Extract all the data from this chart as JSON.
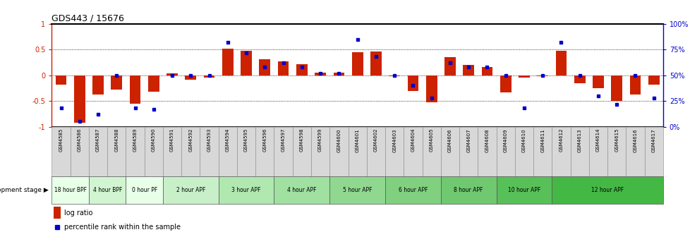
{
  "title": "GDS443 / 15676",
  "samples": [
    "GSM4585",
    "GSM4586",
    "GSM4587",
    "GSM4588",
    "GSM4589",
    "GSM4590",
    "GSM4591",
    "GSM4592",
    "GSM4593",
    "GSM4594",
    "GSM4595",
    "GSM4596",
    "GSM4597",
    "GSM4598",
    "GSM4599",
    "GSM4600",
    "GSM4601",
    "GSM4602",
    "GSM4603",
    "GSM4604",
    "GSM4605",
    "GSM4606",
    "GSM4607",
    "GSM4608",
    "GSM4609",
    "GSM4610",
    "GSM4611",
    "GSM4612",
    "GSM4613",
    "GSM4614",
    "GSM4615",
    "GSM4616",
    "GSM4617"
  ],
  "log_ratio": [
    -0.18,
    -0.92,
    -0.38,
    -0.28,
    -0.55,
    -0.32,
    0.04,
    -0.08,
    -0.04,
    0.52,
    0.48,
    0.31,
    0.27,
    0.22,
    0.05,
    0.05,
    0.45,
    0.46,
    -0.02,
    -0.3,
    -0.52,
    0.35,
    0.2,
    0.16,
    -0.33,
    -0.04,
    -0.02,
    0.48,
    -0.15,
    -0.25,
    -0.5,
    -0.38,
    -0.18
  ],
  "percentile": [
    18,
    5,
    12,
    50,
    18,
    17,
    50,
    50,
    50,
    82,
    72,
    58,
    62,
    58,
    52,
    52,
    85,
    68,
    50,
    40,
    28,
    62,
    58,
    58,
    50,
    18,
    50,
    82,
    50,
    30,
    22,
    50,
    28
  ],
  "stage_groups": [
    {
      "label": "18 hour BPF",
      "start": 0,
      "end": 2,
      "color": "#e8ffe8"
    },
    {
      "label": "4 hour BPF",
      "start": 2,
      "end": 4,
      "color": "#d0f5d0"
    },
    {
      "label": "0 hour PF",
      "start": 4,
      "end": 6,
      "color": "#e8ffe8"
    },
    {
      "label": "2 hour APF",
      "start": 6,
      "end": 9,
      "color": "#c8f0c8"
    },
    {
      "label": "3 hour APF",
      "start": 9,
      "end": 12,
      "color": "#b0e8b0"
    },
    {
      "label": "4 hour APF",
      "start": 12,
      "end": 15,
      "color": "#a0e0a0"
    },
    {
      "label": "5 hour APF",
      "start": 15,
      "end": 18,
      "color": "#90d890"
    },
    {
      "label": "6 hour APF",
      "start": 18,
      "end": 21,
      "color": "#80d080"
    },
    {
      "label": "8 hour APF",
      "start": 21,
      "end": 24,
      "color": "#70c870"
    },
    {
      "label": "10 hour APF",
      "start": 24,
      "end": 27,
      "color": "#58c058"
    },
    {
      "label": "12 hour APF",
      "start": 27,
      "end": 33,
      "color": "#44b844"
    }
  ],
  "sample_cell_color": "#d8d8d8",
  "bar_color": "#cc2200",
  "dot_color": "#0000cc",
  "ylim": [
    -1.0,
    1.0
  ],
  "yticks_left": [
    -1,
    -0.5,
    0,
    0.5,
    1
  ],
  "ytick_labels_left": [
    "-1",
    "-0.5",
    "0",
    "0.5",
    "1"
  ],
  "yticks_right": [
    0,
    25,
    50,
    75,
    100
  ],
  "ytick_labels_right": [
    "0%",
    "25%",
    "50%",
    "75%",
    "100%"
  ],
  "dotted_lines": [
    -0.5,
    0.0,
    0.5
  ],
  "legend_log": "log ratio",
  "legend_pct": "percentile rank within the sample",
  "dev_stage_label": "development stage"
}
